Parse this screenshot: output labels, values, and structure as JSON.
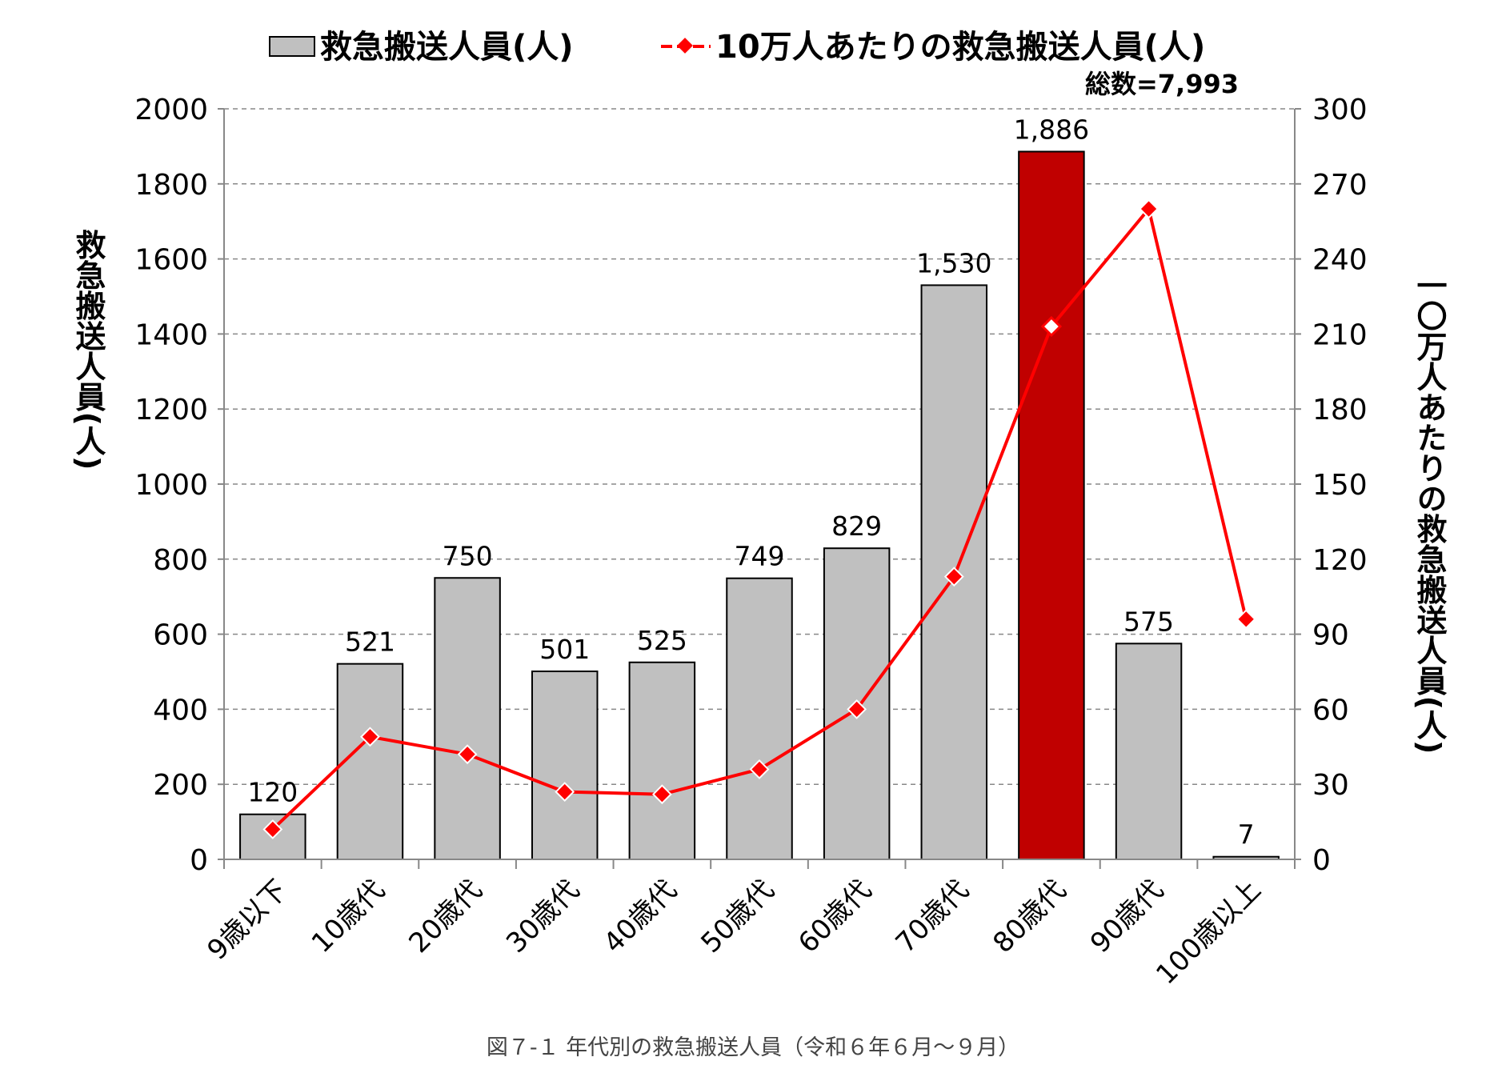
{
  "chart_data": {
    "type": "bar",
    "categories": [
      "9歳以下",
      "10歳代",
      "20歳代",
      "30歳代",
      "40歳代",
      "50歳代",
      "60歳代",
      "70歳代",
      "80歳代",
      "90歳代",
      "100歳以上"
    ],
    "series": [
      {
        "name": "救急搬送人員(人)",
        "type": "bar",
        "axis": "left",
        "values": [
          120,
          521,
          750,
          501,
          525,
          749,
          829,
          1530,
          1886,
          575,
          7
        ],
        "data_labels": [
          "120",
          "521",
          "750",
          "501",
          "525",
          "749",
          "829",
          "1,530",
          "1,886",
          "575",
          "7"
        ],
        "color": "#c0c0c0",
        "highlight_index": 8,
        "highlight_color": "#c00000"
      },
      {
        "name": "10万人あたりの救急搬送人員(人)",
        "type": "line",
        "axis": "right",
        "values": [
          12,
          49,
          42,
          27,
          26,
          36,
          60,
          113,
          213,
          260,
          96
        ],
        "color": "#ff0000",
        "hollow_marker_index": 8
      }
    ],
    "ylabel": "救急搬送人員(人)",
    "ylabel_right": "一〇万人あたりの救急搬送人員(人)",
    "ylim": [
      0,
      2000
    ],
    "yticks": [
      0,
      200,
      400,
      600,
      800,
      1000,
      1200,
      1400,
      1600,
      1800,
      2000
    ],
    "ylim_right": [
      0,
      300
    ],
    "yticks_right": [
      0,
      30,
      60,
      90,
      120,
      150,
      180,
      210,
      240,
      270,
      300
    ],
    "grid": true,
    "legend_position": "top",
    "total_label": "総数=7,993",
    "caption": "図７-１ 年代別の救急搬送人員（令和６年６月〜９月）"
  }
}
